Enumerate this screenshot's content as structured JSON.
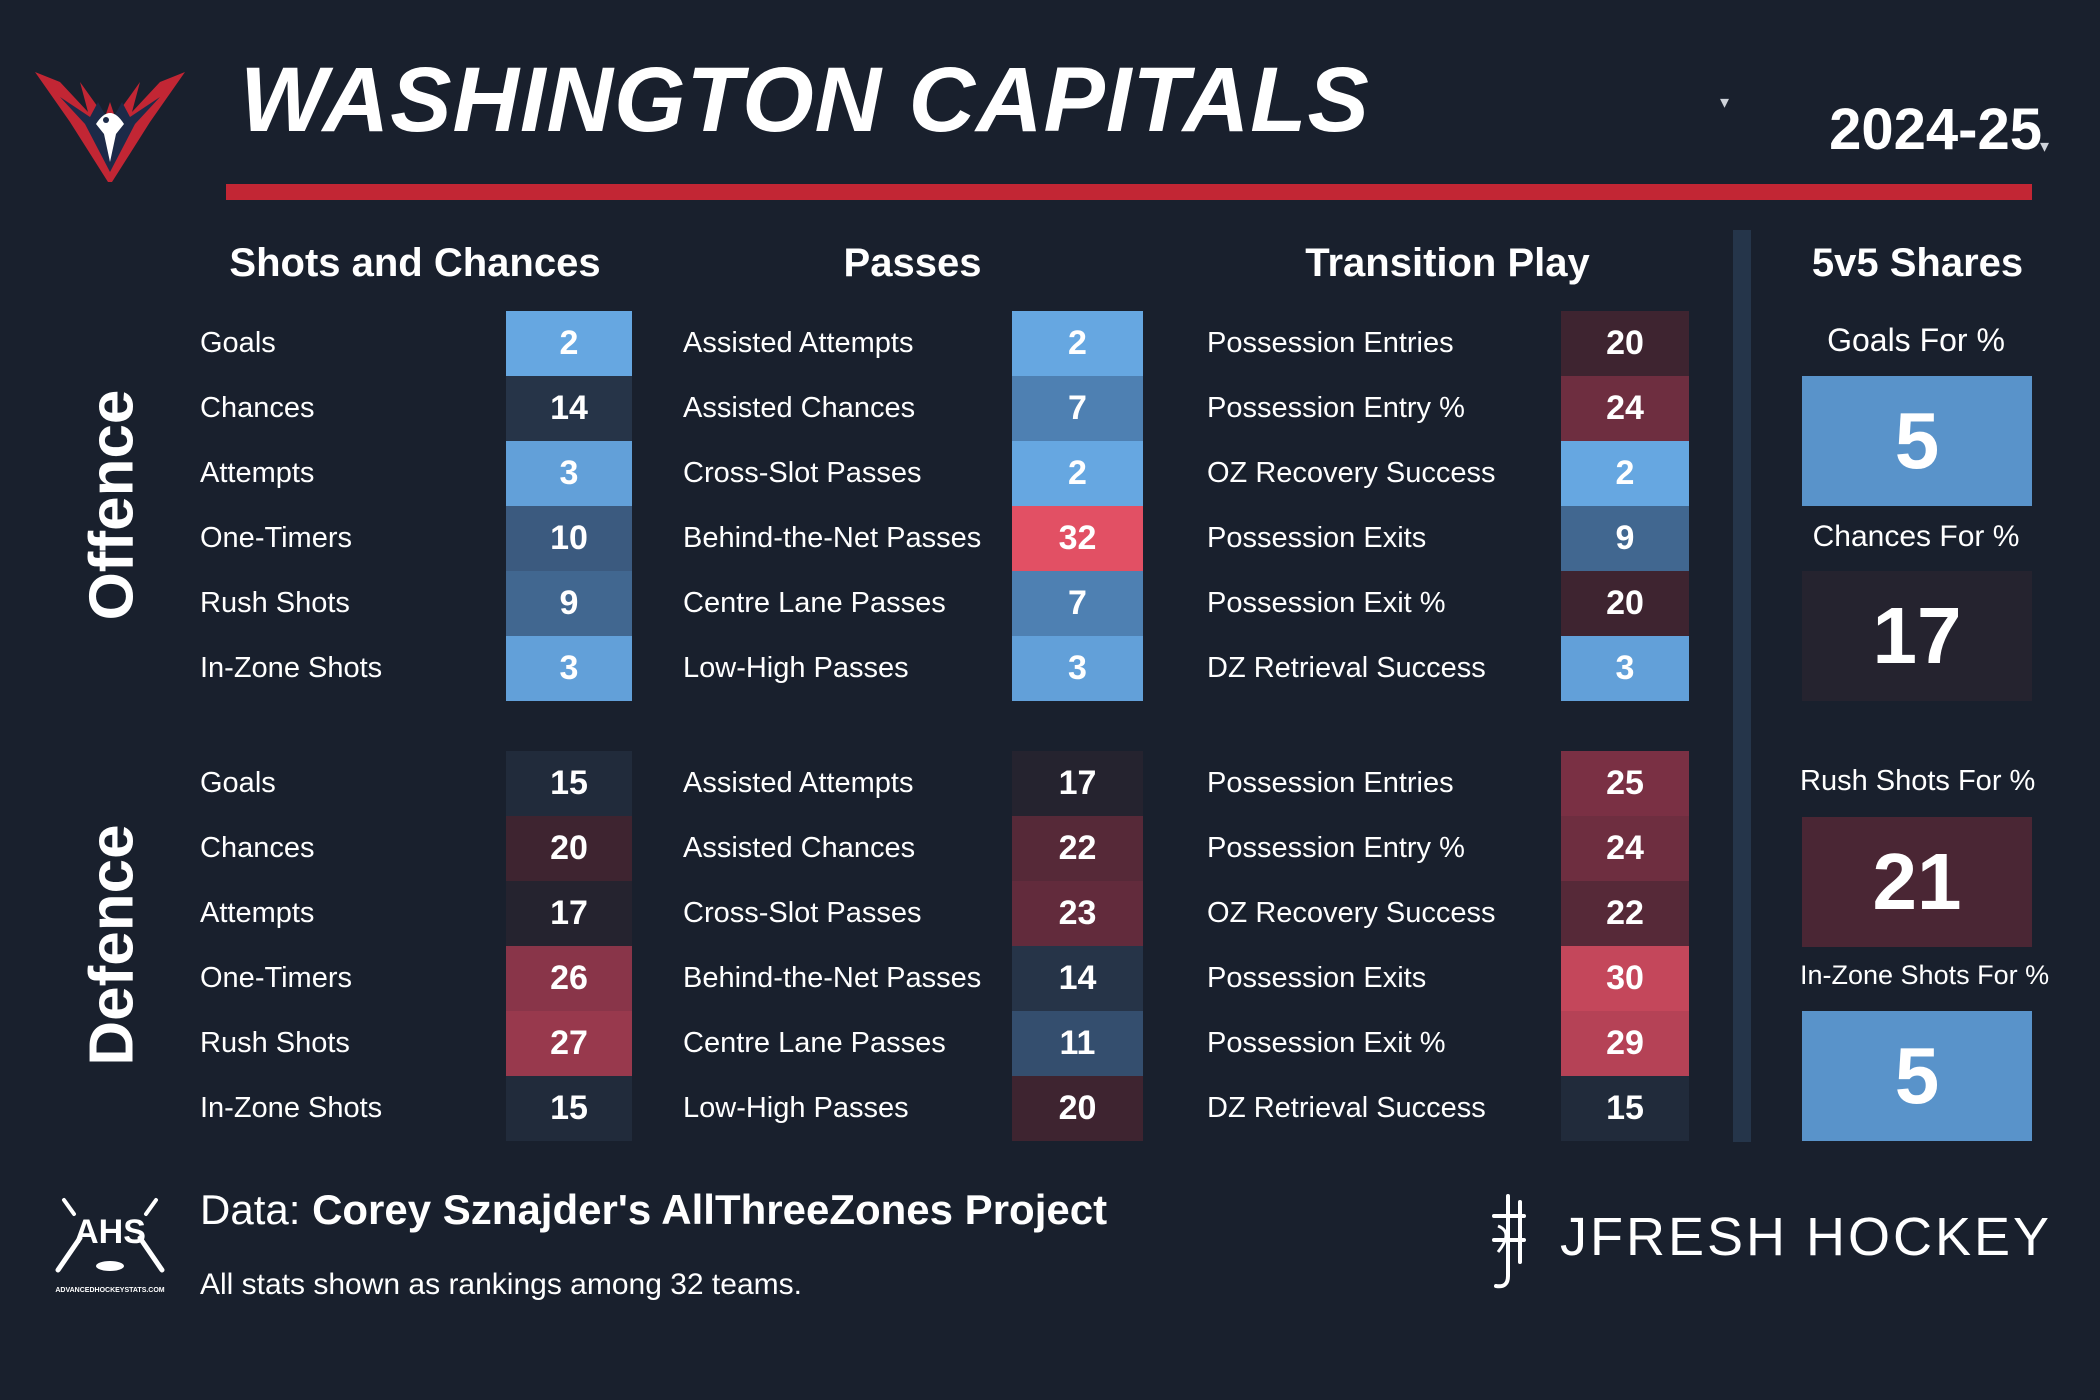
{
  "header": {
    "team": "WASHINGTON CAPITALS",
    "season": "2024-25"
  },
  "sections": {
    "shots": "Shots and Chances",
    "passes": "Passes",
    "transition": "Transition Play",
    "shares": "5v5 Shares"
  },
  "side_labels": {
    "offence": "Offence",
    "defence": "Defence"
  },
  "offence": {
    "shots": [
      {
        "label": "Goals",
        "value": "2"
      },
      {
        "label": "Chances",
        "value": "14"
      },
      {
        "label": "Attempts",
        "value": "3"
      },
      {
        "label": "One-Timers",
        "value": "10"
      },
      {
        "label": "Rush Shots",
        "value": "9"
      },
      {
        "label": "In-Zone Shots",
        "value": "3"
      }
    ],
    "passes": [
      {
        "label": "Assisted Attempts",
        "value": "2"
      },
      {
        "label": "Assisted Chances",
        "value": "7"
      },
      {
        "label": "Cross-Slot Passes",
        "value": "2"
      },
      {
        "label": "Behind-the-Net Passes",
        "value": "32"
      },
      {
        "label": "Centre Lane Passes",
        "value": "7"
      },
      {
        "label": "Low-High Passes",
        "value": "3"
      }
    ],
    "transition": [
      {
        "label": "Possession Entries",
        "value": "20"
      },
      {
        "label": "Possession Entry %",
        "value": "24"
      },
      {
        "label": "OZ Recovery Success",
        "value": "2"
      },
      {
        "label": "Possession Exits",
        "value": "9"
      },
      {
        "label": "Possession Exit %",
        "value": "20"
      },
      {
        "label": "DZ Retrieval Success",
        "value": "3"
      }
    ]
  },
  "defence": {
    "shots": [
      {
        "label": "Goals",
        "value": "15"
      },
      {
        "label": "Chances",
        "value": "20"
      },
      {
        "label": "Attempts",
        "value": "17"
      },
      {
        "label": "One-Timers",
        "value": "26"
      },
      {
        "label": "Rush Shots",
        "value": "27"
      },
      {
        "label": "In-Zone Shots",
        "value": "15"
      }
    ],
    "passes": [
      {
        "label": "Assisted Attempts",
        "value": "17"
      },
      {
        "label": "Assisted Chances",
        "value": "22"
      },
      {
        "label": "Cross-Slot Passes",
        "value": "23"
      },
      {
        "label": "Behind-the-Net Passes",
        "value": "14"
      },
      {
        "label": "Centre Lane Passes",
        "value": "11"
      },
      {
        "label": "Low-High Passes",
        "value": "20"
      }
    ],
    "transition": [
      {
        "label": "Possession Entries",
        "value": "25"
      },
      {
        "label": "Possession Entry %",
        "value": "24"
      },
      {
        "label": "OZ Recovery Success",
        "value": "22"
      },
      {
        "label": "Possession Exits",
        "value": "30"
      },
      {
        "label": "Possession Exit %",
        "value": "29"
      },
      {
        "label": "DZ Retrieval Success",
        "value": "15"
      }
    ]
  },
  "shares": [
    {
      "label": "Goals For %",
      "value": "5"
    },
    {
      "label": "Chances For %",
      "value": "17"
    },
    {
      "label": "Rush Shots For %",
      "value": "21"
    },
    {
      "label": "In-Zone Shots For %",
      "value": "5"
    }
  ],
  "footer": {
    "data_prefix": "Data: ",
    "data_source": "Corey Sznajder's AllThreeZones Project",
    "note": "All stats shown as rankings among 32 teams.",
    "brand": "JFRESH HOCKEY",
    "ahs_logo_text": "AHS",
    "ahs_logo_url": "ADVANCEDHOCKEYSTATS.COM"
  },
  "colors": {
    "background": "#19202d",
    "accent_red": "#c22634",
    "divider": "#25354a"
  }
}
